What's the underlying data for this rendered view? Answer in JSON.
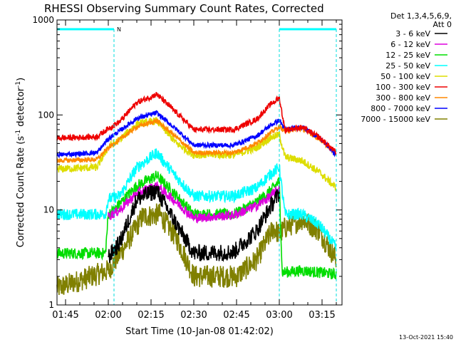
{
  "chart_data": {
    "type": "line",
    "title": "RHESSI Observing Summary Count Rates, Corrected",
    "xlabel": "Start Time (10-Jan-08 01:42:02)",
    "ylabel_main": "Corrected Count Rate (s",
    "ylabel_sup1": "-1",
    "ylabel_mid": " detector",
    "ylabel_sup2": "-1",
    "ylabel_end": ")",
    "y_scale": "log",
    "ylim": [
      1,
      1000
    ],
    "xlim_minutes": [
      0,
      100
    ],
    "x_ticks": [
      "01:45",
      "02:00",
      "02:15",
      "02:30",
      "02:45",
      "03:00",
      "03:15"
    ],
    "x_tick_minutes": [
      3,
      18,
      33,
      48,
      63,
      78,
      93
    ],
    "y_ticks": [
      "1",
      "10",
      "100",
      "1000"
    ],
    "y_tick_values": [
      1,
      10,
      100,
      1000
    ],
    "legend_header": [
      "Det 1,3,4,5,6,9,",
      "Att 0"
    ],
    "legend_placement": "top-right-outside",
    "footer_timestamp": "13-Oct-2021 15:40",
    "night_marker_label": "N",
    "night_bars": [
      [
        0,
        20
      ],
      [
        78,
        98
      ]
    ],
    "series": [
      {
        "name": "3 - 6 keV",
        "color": "#000000",
        "noise": 0.09,
        "t": [
          18,
          22,
          28,
          35,
          42,
          48,
          62,
          70,
          75,
          78
        ],
        "y": [
          3.2,
          4.5,
          13,
          16,
          7,
          3.5,
          3.6,
          6,
          11,
          15
        ]
      },
      {
        "name": "6 - 12 keV",
        "color": "#dd00dd",
        "noise": 0.05,
        "t": [
          18,
          22,
          28,
          35,
          42,
          48,
          62,
          70,
          75,
          78
        ],
        "y": [
          8.5,
          10,
          15,
          18,
          12,
          8.2,
          8.8,
          11,
          14,
          17
        ]
      },
      {
        "name": "12 - 25 keV",
        "color": "#00dd00",
        "noise": 0.06,
        "t": [
          0,
          17,
          18,
          20,
          28,
          35,
          42,
          48,
          62,
          70,
          75,
          78,
          79,
          86,
          92,
          98
        ],
        "y": [
          3.5,
          3.5,
          9,
          10,
          18,
          23,
          14,
          9,
          9,
          12,
          16,
          20,
          2.2,
          2.3,
          2.2,
          2.1
        ]
      },
      {
        "name": "25 - 50 keV",
        "color": "#00ffff",
        "noise": 0.06,
        "t": [
          0,
          17,
          18,
          22,
          28,
          35,
          42,
          48,
          62,
          70,
          75,
          78,
          80,
          86,
          92,
          98
        ],
        "y": [
          9,
          9,
          13,
          14,
          28,
          40,
          22,
          14,
          14,
          17,
          24,
          28,
          9,
          9,
          7,
          4
        ]
      },
      {
        "name": "50 - 100 keV",
        "color": "#dddd00",
        "noise": 0.04,
        "t": [
          0,
          14,
          18,
          22,
          28,
          35,
          42,
          48,
          62,
          70,
          75,
          78,
          80,
          86,
          92,
          98
        ],
        "y": [
          27,
          28,
          46,
          55,
          80,
          87,
          50,
          38,
          38,
          45,
          58,
          62,
          36,
          33,
          25,
          17
        ]
      },
      {
        "name": "100 - 300 keV",
        "color": "#ee0000",
        "noise": 0.03,
        "t": [
          0,
          14,
          18,
          22,
          28,
          35,
          42,
          48,
          62,
          70,
          75,
          78,
          80,
          86,
          92,
          98
        ],
        "y": [
          57,
          59,
          72,
          85,
          135,
          165,
          105,
          70,
          70,
          90,
          130,
          150,
          70,
          74,
          58,
          40
        ]
      },
      {
        "name": "300 - 800 keV",
        "color": "#ff8800",
        "noise": 0.025,
        "t": [
          0,
          14,
          18,
          22,
          28,
          35,
          42,
          48,
          62,
          70,
          75,
          78,
          80,
          86,
          92,
          98
        ],
        "y": [
          33,
          34,
          45,
          55,
          75,
          87,
          58,
          40,
          40,
          50,
          65,
          75,
          68,
          72,
          56,
          39
        ]
      },
      {
        "name": "800 - 7000 keV",
        "color": "#0000ff",
        "noise": 0.025,
        "t": [
          0,
          14,
          18,
          22,
          28,
          35,
          42,
          48,
          62,
          70,
          75,
          78,
          80,
          86,
          92,
          98
        ],
        "y": [
          38,
          40,
          56,
          68,
          92,
          105,
          70,
          48,
          48,
          60,
          78,
          88,
          70,
          75,
          58,
          38
        ]
      },
      {
        "name": "7000 - 15000 keV",
        "color": "#808000",
        "noise": 0.12,
        "t": [
          0,
          18,
          24,
          30,
          36,
          42,
          48,
          63,
          70,
          76,
          78,
          80,
          86,
          92,
          98
        ],
        "y": [
          1.5,
          2.3,
          4.2,
          8.5,
          9,
          5,
          2,
          2,
          3,
          6.5,
          5.5,
          6.5,
          8,
          6,
          3
        ]
      }
    ]
  }
}
